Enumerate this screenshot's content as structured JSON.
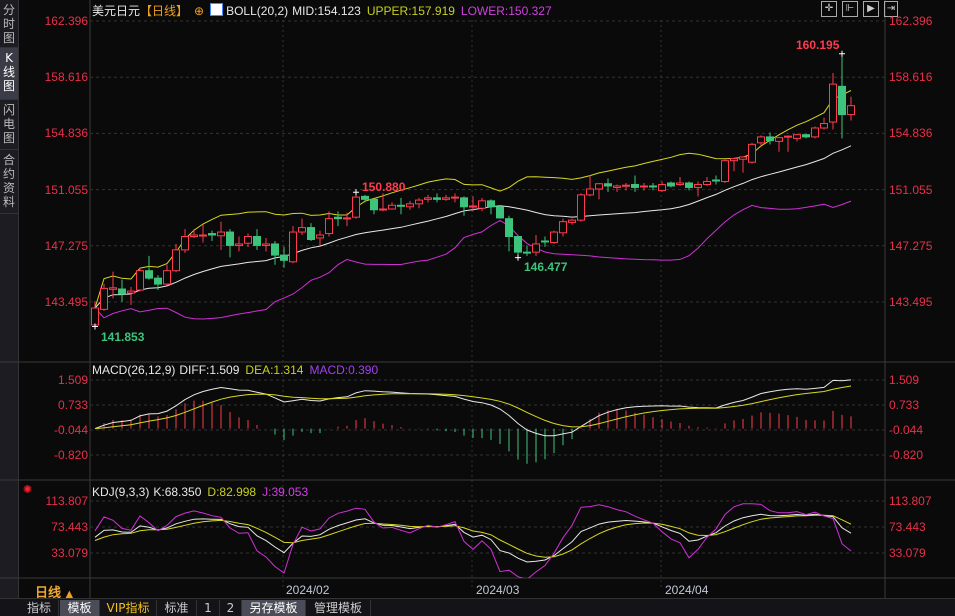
{
  "sidebar": {
    "tabs": [
      {
        "label": "分时图"
      },
      {
        "label": "K线图",
        "active": true
      },
      {
        "label": "闪电图"
      },
      {
        "label": "合约资料"
      }
    ]
  },
  "header": {
    "symbol": "美元日元",
    "period": "【日线】",
    "boll_label": "BOLL(20,2)",
    "mid": "MID:154.123",
    "upper": "UPPER:157.919",
    "lower": "LOWER:150.327"
  },
  "toolbar": {
    "icons": [
      "crosshair-icon",
      "zoom-range-icon",
      "play-icon",
      "move-right-icon"
    ]
  },
  "macd_header": {
    "label": "MACD(26,12,9)",
    "diff": "DIFF:1.509",
    "dea": "DEA:1.314",
    "macd": "MACD:0.390"
  },
  "kdj_header": {
    "label": "KDJ(9,3,3)",
    "k": "K:68.350",
    "d": "D:82.998",
    "j": "J:39.053"
  },
  "period_selector": {
    "label": "日线",
    "arrow": "▲"
  },
  "bottom_tabs": [
    {
      "label": "指标"
    },
    {
      "label": "模板",
      "selected": true
    },
    {
      "label": "VIP指标"
    },
    {
      "label": "标准"
    },
    {
      "label": "1"
    },
    {
      "label": "2"
    },
    {
      "label": "另存模板",
      "selected": true
    },
    {
      "label": "管理模板"
    }
  ],
  "colors": {
    "up": "#ff3b4f",
    "down": "#3cc47c",
    "mid": "#e8e8e8",
    "upper": "#d8d820",
    "lower": "#d030d8",
    "axis_text": "#e8304a"
  },
  "chart_data": [
    {
      "type": "candlestick",
      "title": "美元日元",
      "price_ticks": [
        "162.396",
        "158.616",
        "154.836",
        "151.055",
        "147.275",
        "143.495"
      ],
      "ylim": [
        143.495,
        162.396
      ],
      "grid": true,
      "x_labels": [
        {
          "label": "2024/02",
          "index": 21
        },
        {
          "label": "2024/03",
          "index": 42
        },
        {
          "label": "2024/04",
          "index": 63
        }
      ],
      "annotations": [
        {
          "label": "160.195",
          "index": 83,
          "type": "high"
        },
        {
          "label": "150.880",
          "index": 29,
          "type": "high"
        },
        {
          "label": "146.477",
          "index": 47,
          "type": "low"
        },
        {
          "label": "141.853",
          "index": 0,
          "type": "low"
        }
      ],
      "overlay": "BOLL(20,2)",
      "ohlc": [
        [
          141.95,
          143.56,
          141.85,
          143.09
        ],
        [
          143.0,
          144.71,
          142.9,
          144.41
        ],
        [
          144.35,
          145.54,
          143.74,
          144.45
        ],
        [
          144.37,
          145.0,
          143.5,
          144.03
        ],
        [
          144.1,
          144.5,
          143.3,
          144.23
        ],
        [
          144.3,
          145.8,
          144.2,
          145.6
        ],
        [
          145.6,
          146.6,
          145.0,
          145.1
        ],
        [
          145.1,
          145.3,
          144.3,
          144.7
        ],
        [
          144.7,
          146.0,
          144.6,
          145.6
        ],
        [
          145.6,
          147.4,
          145.5,
          147.0
        ],
        [
          147.0,
          148.4,
          146.8,
          147.9
        ],
        [
          147.9,
          148.4,
          147.8,
          148.0
        ],
        [
          147.95,
          148.7,
          147.5,
          148.0
        ],
        [
          148.1,
          148.3,
          147.6,
          148.0
        ],
        [
          147.95,
          148.9,
          147.0,
          148.2
        ],
        [
          148.2,
          148.4,
          146.5,
          147.3
        ],
        [
          147.3,
          147.9,
          146.9,
          147.4
        ],
        [
          147.45,
          148.1,
          147.2,
          147.9
        ],
        [
          147.9,
          148.4,
          147.0,
          147.3
        ],
        [
          147.3,
          147.8,
          146.9,
          147.4
        ],
        [
          147.4,
          147.6,
          146.0,
          146.65
        ],
        [
          146.65,
          147.2,
          145.8,
          146.3
        ],
        [
          146.2,
          148.6,
          146.1,
          148.2
        ],
        [
          148.2,
          149.1,
          148.0,
          148.5
        ],
        [
          148.5,
          148.8,
          147.6,
          147.7
        ],
        [
          147.8,
          148.3,
          147.3,
          148.0
        ],
        [
          148.1,
          149.6,
          147.9,
          149.1
        ],
        [
          149.2,
          149.6,
          148.6,
          149.1
        ],
        [
          149.1,
          149.5,
          148.6,
          149.15
        ],
        [
          149.2,
          150.88,
          149.1,
          150.55
        ],
        [
          150.6,
          150.7,
          150.2,
          150.4
        ],
        [
          150.4,
          150.4,
          149.4,
          149.7
        ],
        [
          149.7,
          150.8,
          149.6,
          149.75
        ],
        [
          149.75,
          150.2,
          149.7,
          150.0
        ],
        [
          150.0,
          150.5,
          149.4,
          149.95
        ],
        [
          149.9,
          150.3,
          149.7,
          150.1
        ],
        [
          150.1,
          150.5,
          149.8,
          150.35
        ],
        [
          150.4,
          150.7,
          150.2,
          150.5
        ],
        [
          150.5,
          150.8,
          150.2,
          150.4
        ],
        [
          150.4,
          150.7,
          150.3,
          150.5
        ],
        [
          150.5,
          150.8,
          150.2,
          150.55
        ],
        [
          150.5,
          150.6,
          149.3,
          149.9
        ],
        [
          149.9,
          150.6,
          149.6,
          149.95
        ],
        [
          149.8,
          150.5,
          149.6,
          150.3
        ],
        [
          150.3,
          150.4,
          149.4,
          149.9
        ],
        [
          149.9,
          150.0,
          149.1,
          149.15
        ],
        [
          149.1,
          149.3,
          146.9,
          147.9
        ],
        [
          147.9,
          147.9,
          146.477,
          146.85
        ],
        [
          146.85,
          147.3,
          146.6,
          146.8
        ],
        [
          146.85,
          148.0,
          146.6,
          147.4
        ],
        [
          147.6,
          147.9,
          147.2,
          147.55
        ],
        [
          147.5,
          148.3,
          147.4,
          148.2
        ],
        [
          148.15,
          149.1,
          147.9,
          148.9
        ],
        [
          148.85,
          149.1,
          148.7,
          149.0
        ],
        [
          149.0,
          150.8,
          148.9,
          150.7
        ],
        [
          150.7,
          152.0,
          150.6,
          151.1
        ],
        [
          151.1,
          151.5,
          150.4,
          151.45
        ],
        [
          151.45,
          151.8,
          150.9,
          151.3
        ],
        [
          151.2,
          151.4,
          150.9,
          151.3
        ],
        [
          151.3,
          151.5,
          151.0,
          151.35
        ],
        [
          151.4,
          152.0,
          150.9,
          151.2
        ],
        [
          151.25,
          151.5,
          151.0,
          151.3
        ],
        [
          151.3,
          151.5,
          151.0,
          151.25
        ],
        [
          151.0,
          151.6,
          150.9,
          151.4
        ],
        [
          151.5,
          151.6,
          151.2,
          151.3
        ],
        [
          151.4,
          151.9,
          151.3,
          151.5
        ],
        [
          151.5,
          151.6,
          151.0,
          151.2
        ],
        [
          151.2,
          151.6,
          150.6,
          151.4
        ],
        [
          151.4,
          151.9,
          151.3,
          151.6
        ],
        [
          151.7,
          152.0,
          151.4,
          151.65
        ],
        [
          151.6,
          153.1,
          151.5,
          153.0
        ],
        [
          153.0,
          153.2,
          152.3,
          153.15
        ],
        [
          153.1,
          153.3,
          152.2,
          153.25
        ],
        [
          152.9,
          154.2,
          152.8,
          154.1
        ],
        [
          154.2,
          154.7,
          153.9,
          154.6
        ],
        [
          154.6,
          154.9,
          154.1,
          154.35
        ],
        [
          154.3,
          154.6,
          153.6,
          154.55
        ],
        [
          154.6,
          154.7,
          153.6,
          154.65
        ],
        [
          154.5,
          154.8,
          154.3,
          154.75
        ],
        [
          154.75,
          154.8,
          154.5,
          154.6
        ],
        [
          154.6,
          155.3,
          154.5,
          155.2
        ],
        [
          155.2,
          155.9,
          155.1,
          155.5
        ],
        [
          155.6,
          158.9,
          155.1,
          158.15
        ],
        [
          158.0,
          160.195,
          154.5,
          156.1
        ],
        [
          156.1,
          157.3,
          155.7,
          156.7
        ]
      ]
    },
    {
      "type": "bar+line",
      "title": "MACD(26,12,9)",
      "ticks": [
        "1.509",
        "0.733",
        "-0.044",
        "-0.820"
      ],
      "ylim": [
        -0.82,
        1.509
      ],
      "series": [
        {
          "name": "DIFF"
        },
        {
          "name": "DEA"
        },
        {
          "name": "MACD"
        }
      ]
    },
    {
      "type": "line",
      "title": "KDJ(9,3,3)",
      "ticks": [
        "113.807",
        "73.443",
        "33.079"
      ],
      "ylim": [
        33.079,
        113.807
      ],
      "series": [
        {
          "name": "K"
        },
        {
          "name": "D"
        },
        {
          "name": "J"
        }
      ]
    }
  ]
}
